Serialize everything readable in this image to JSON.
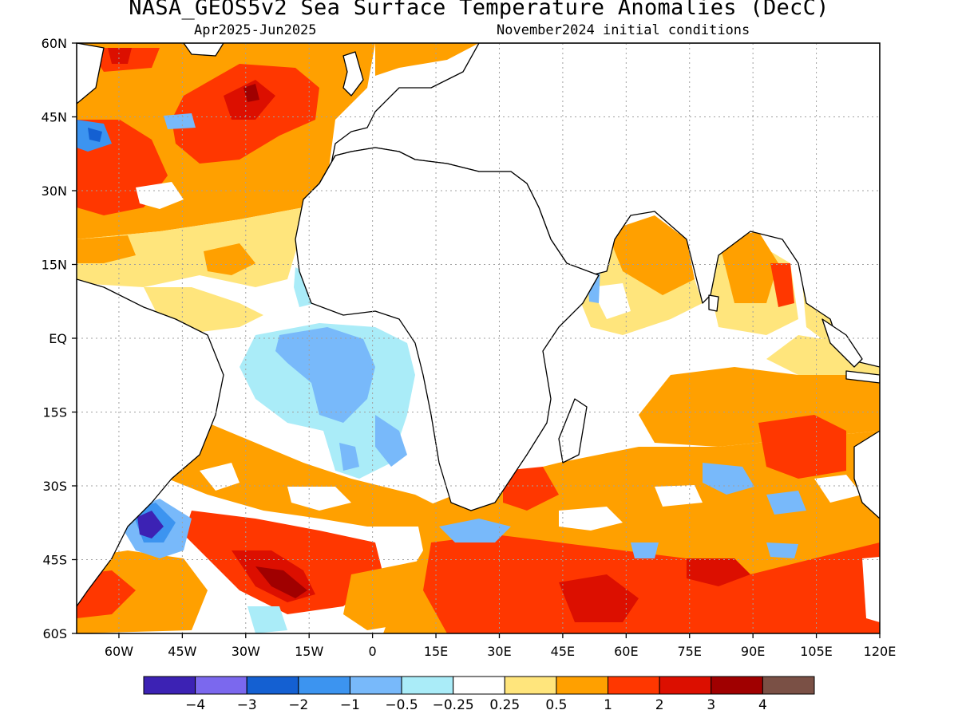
{
  "title": "NASA_GEOS5v2 Sea Surface Temperature Anomalies (DecC)",
  "subtitle_left": "Apr2025-Jun2025",
  "subtitle_right": "November2024 initial conditions",
  "map": {
    "lon_range": [
      -70,
      120
    ],
    "lat_range": [
      -60,
      60
    ],
    "lon_ticks": [
      {
        "value": -60,
        "label": "60W"
      },
      {
        "value": -45,
        "label": "45W"
      },
      {
        "value": -30,
        "label": "30W"
      },
      {
        "value": -15,
        "label": "15W"
      },
      {
        "value": 0,
        "label": "0"
      },
      {
        "value": 15,
        "label": "15E"
      },
      {
        "value": 30,
        "label": "30E"
      },
      {
        "value": 45,
        "label": "45E"
      },
      {
        "value": 60,
        "label": "60E"
      },
      {
        "value": 75,
        "label": "75E"
      },
      {
        "value": 90,
        "label": "90E"
      },
      {
        "value": 105,
        "label": "105E"
      },
      {
        "value": 120,
        "label": "120E"
      }
    ],
    "lat_ticks": [
      {
        "value": 60,
        "label": "60N"
      },
      {
        "value": 45,
        "label": "45N"
      },
      {
        "value": 30,
        "label": "30N"
      },
      {
        "value": 15,
        "label": "15N"
      },
      {
        "value": 0,
        "label": "EQ"
      },
      {
        "value": -15,
        "label": "15S"
      },
      {
        "value": -30,
        "label": "30S"
      },
      {
        "value": -45,
        "label": "45S"
      },
      {
        "value": -60,
        "label": "60S"
      }
    ],
    "grid": "dotted"
  },
  "legend": {
    "colors": [
      "#3c22b4",
      "#7b68ee",
      "#1460d2",
      "#3c94f0",
      "#78b9fa",
      "#aaecf8",
      "#ffffff",
      "#ffe57c",
      "#ffa000",
      "#ff3700",
      "#dc0f00",
      "#a00000",
      "#7a5045"
    ],
    "labels": [
      "-4",
      "-3",
      "-2",
      "-1",
      "-0.5",
      "-0.25",
      "0.25",
      "0.5",
      "1",
      "2",
      "3",
      "4"
    ]
  }
}
